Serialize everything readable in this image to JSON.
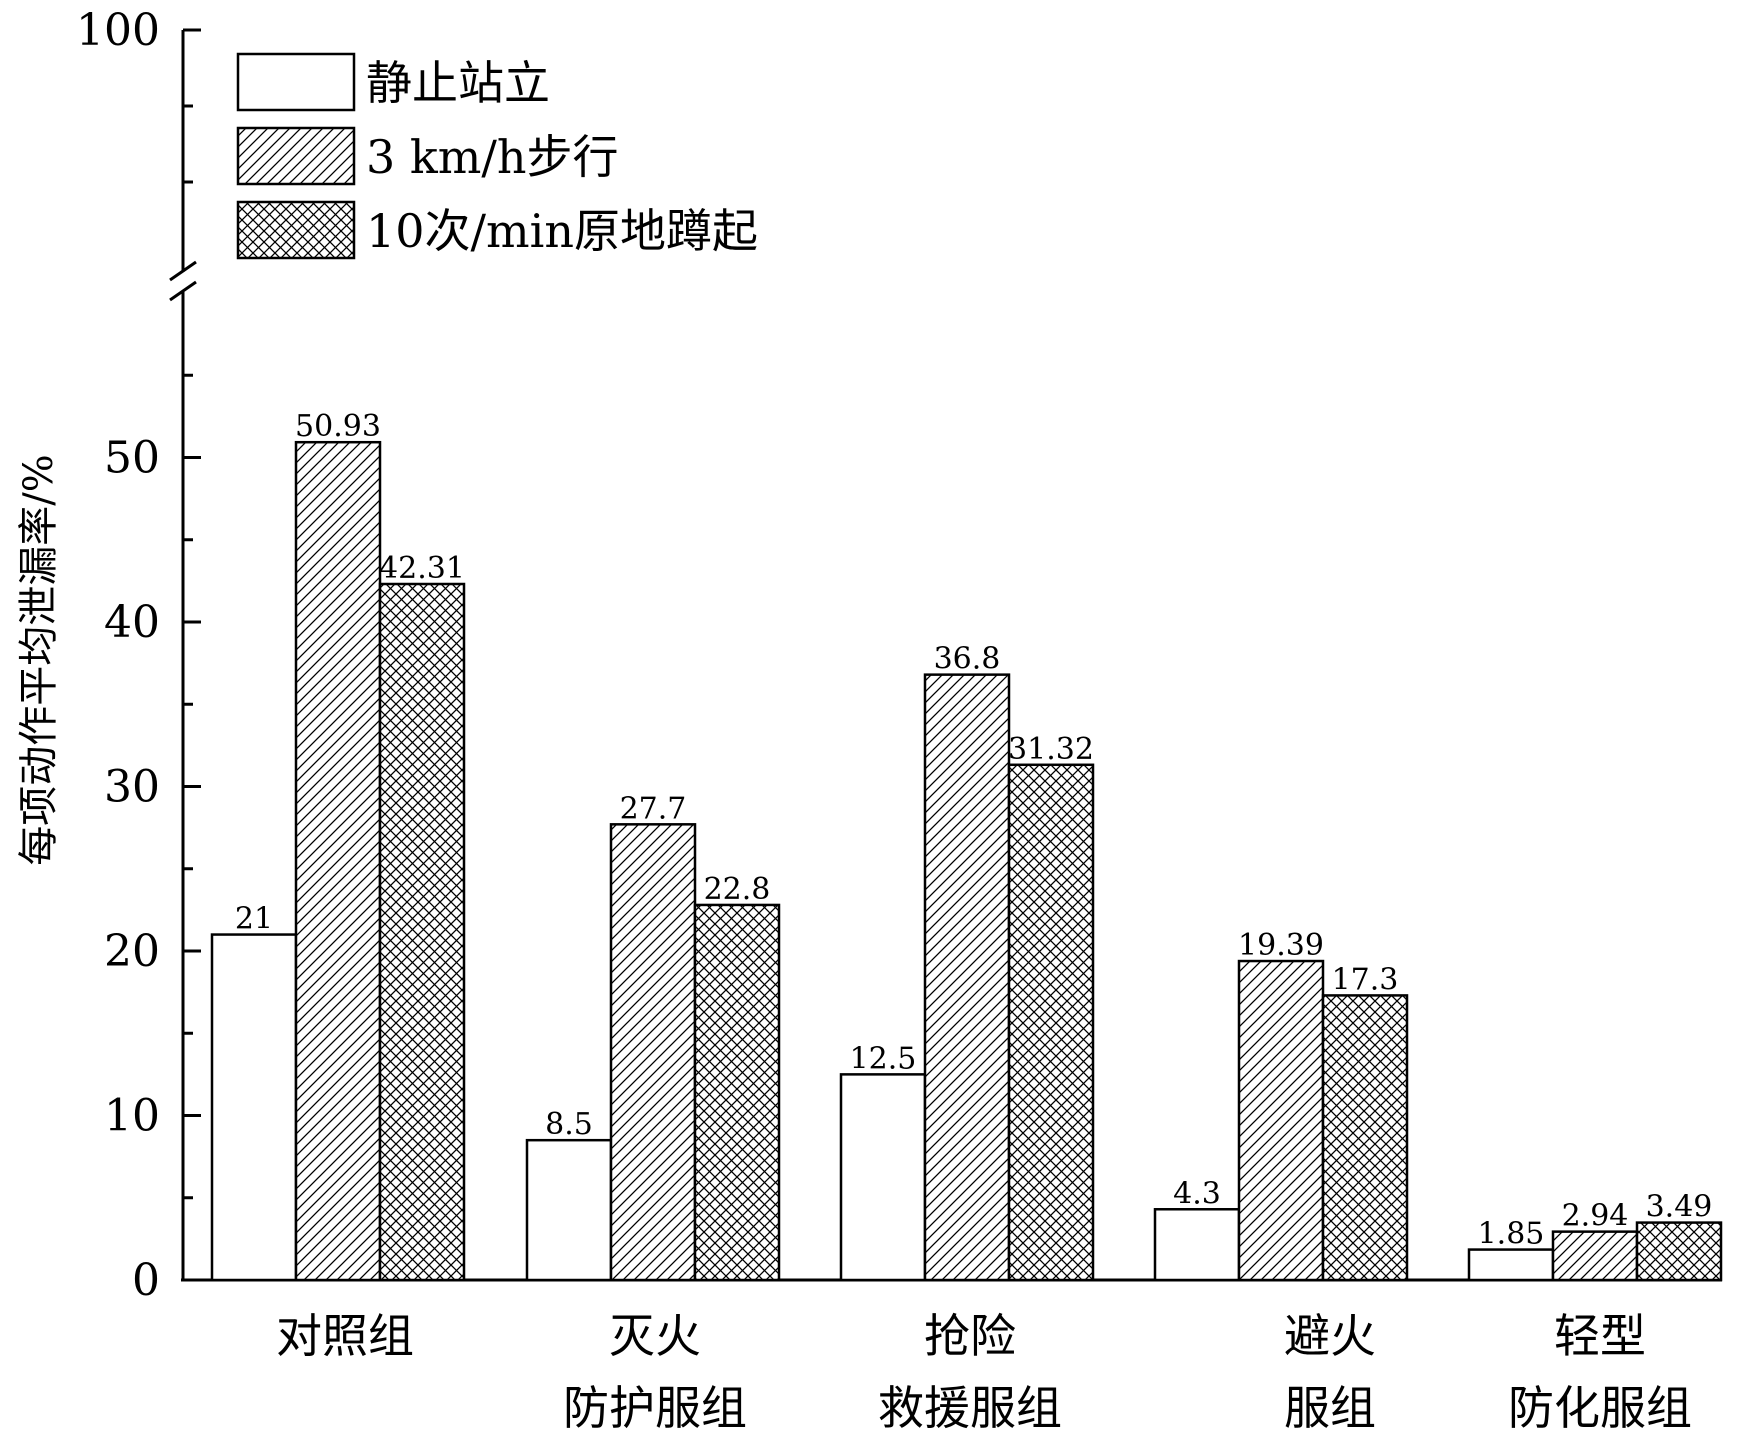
{
  "chart_data": {
    "type": "bar",
    "ylabel": "每项动作平均泄漏率/%",
    "ylim": [
      0,
      100
    ],
    "axis_break": true,
    "yticks": [
      "0",
      "10",
      "20",
      "30",
      "40",
      "50",
      "100"
    ],
    "categories": [
      [
        "对照组"
      ],
      [
        "灭火",
        "防护服组"
      ],
      [
        "抢险",
        "救援服组"
      ],
      [
        "避火",
        "服组"
      ],
      [
        "轻型",
        "防化服组"
      ]
    ],
    "series": [
      {
        "name": "静止站立",
        "pattern": "none",
        "values": [
          21,
          8.5,
          12.5,
          4.3,
          1.85
        ],
        "labels": [
          "21",
          "8.5",
          "12.5",
          "4.3",
          "1.85"
        ]
      },
      {
        "name": "3 km/h步行",
        "pattern": "diagonal",
        "values": [
          50.93,
          27.7,
          36.8,
          19.39,
          2.94
        ],
        "labels": [
          "50.93",
          "27.7",
          "36.8",
          "19.39",
          "2.94"
        ]
      },
      {
        "name": "10次/min原地蹲起",
        "pattern": "crosshatch",
        "values": [
          42.31,
          22.8,
          31.32,
          17.3,
          3.49
        ],
        "labels": [
          "42.31",
          "22.8",
          "31.32",
          "17.3",
          "3.49"
        ]
      }
    ],
    "legend_position": "top-left",
    "colors": {
      "bar_fill": "#ffffff",
      "stroke": "#000000"
    }
  }
}
